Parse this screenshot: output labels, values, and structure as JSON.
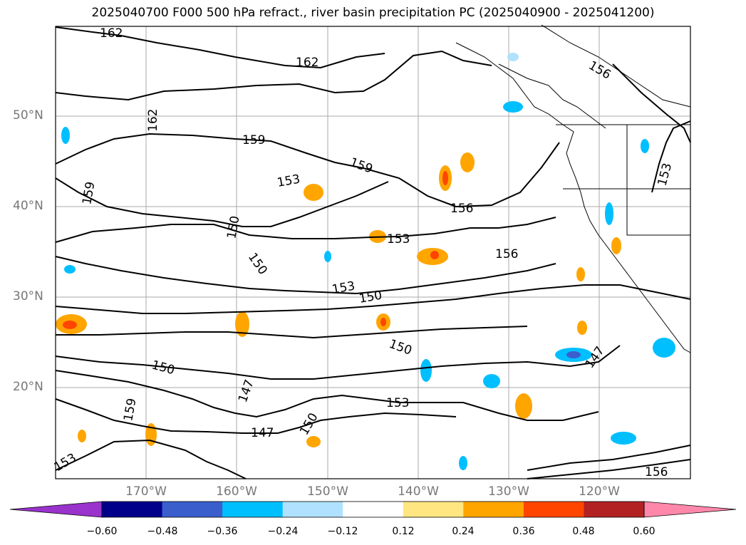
{
  "title": "2025040700 F000 500 hPa refract., river basin precipitation PC (2025040900 - 2025041200)",
  "lat_labels": [
    "50°N",
    "40°N",
    "30°N",
    "20°N"
  ],
  "lon_labels": [
    "170°W",
    "160°W",
    "150°W",
    "140°W",
    "130°W",
    "120°W"
  ],
  "contour_labels": [
    "162",
    "162",
    "162",
    "159",
    "159",
    "159",
    "159",
    "156",
    "156",
    "156",
    "156",
    "153",
    "153",
    "153",
    "153",
    "153",
    "153",
    "150",
    "150",
    "150",
    "150",
    "150",
    "150",
    "147",
    "147",
    "147"
  ],
  "colorbar": {
    "ticks": [
      "−0.60",
      "−0.48",
      "−0.36",
      "−0.24",
      "−0.12",
      "0.12",
      "0.24",
      "0.36",
      "0.48",
      "0.60"
    ],
    "colors": [
      "#9933cc",
      "#00008b",
      "#3a5fcd",
      "#00bfff",
      "#b0e2ff",
      "#ffffff",
      "#ffe680",
      "#ffa500",
      "#ff4500",
      "#b22222",
      "#ff88aa"
    ]
  }
}
